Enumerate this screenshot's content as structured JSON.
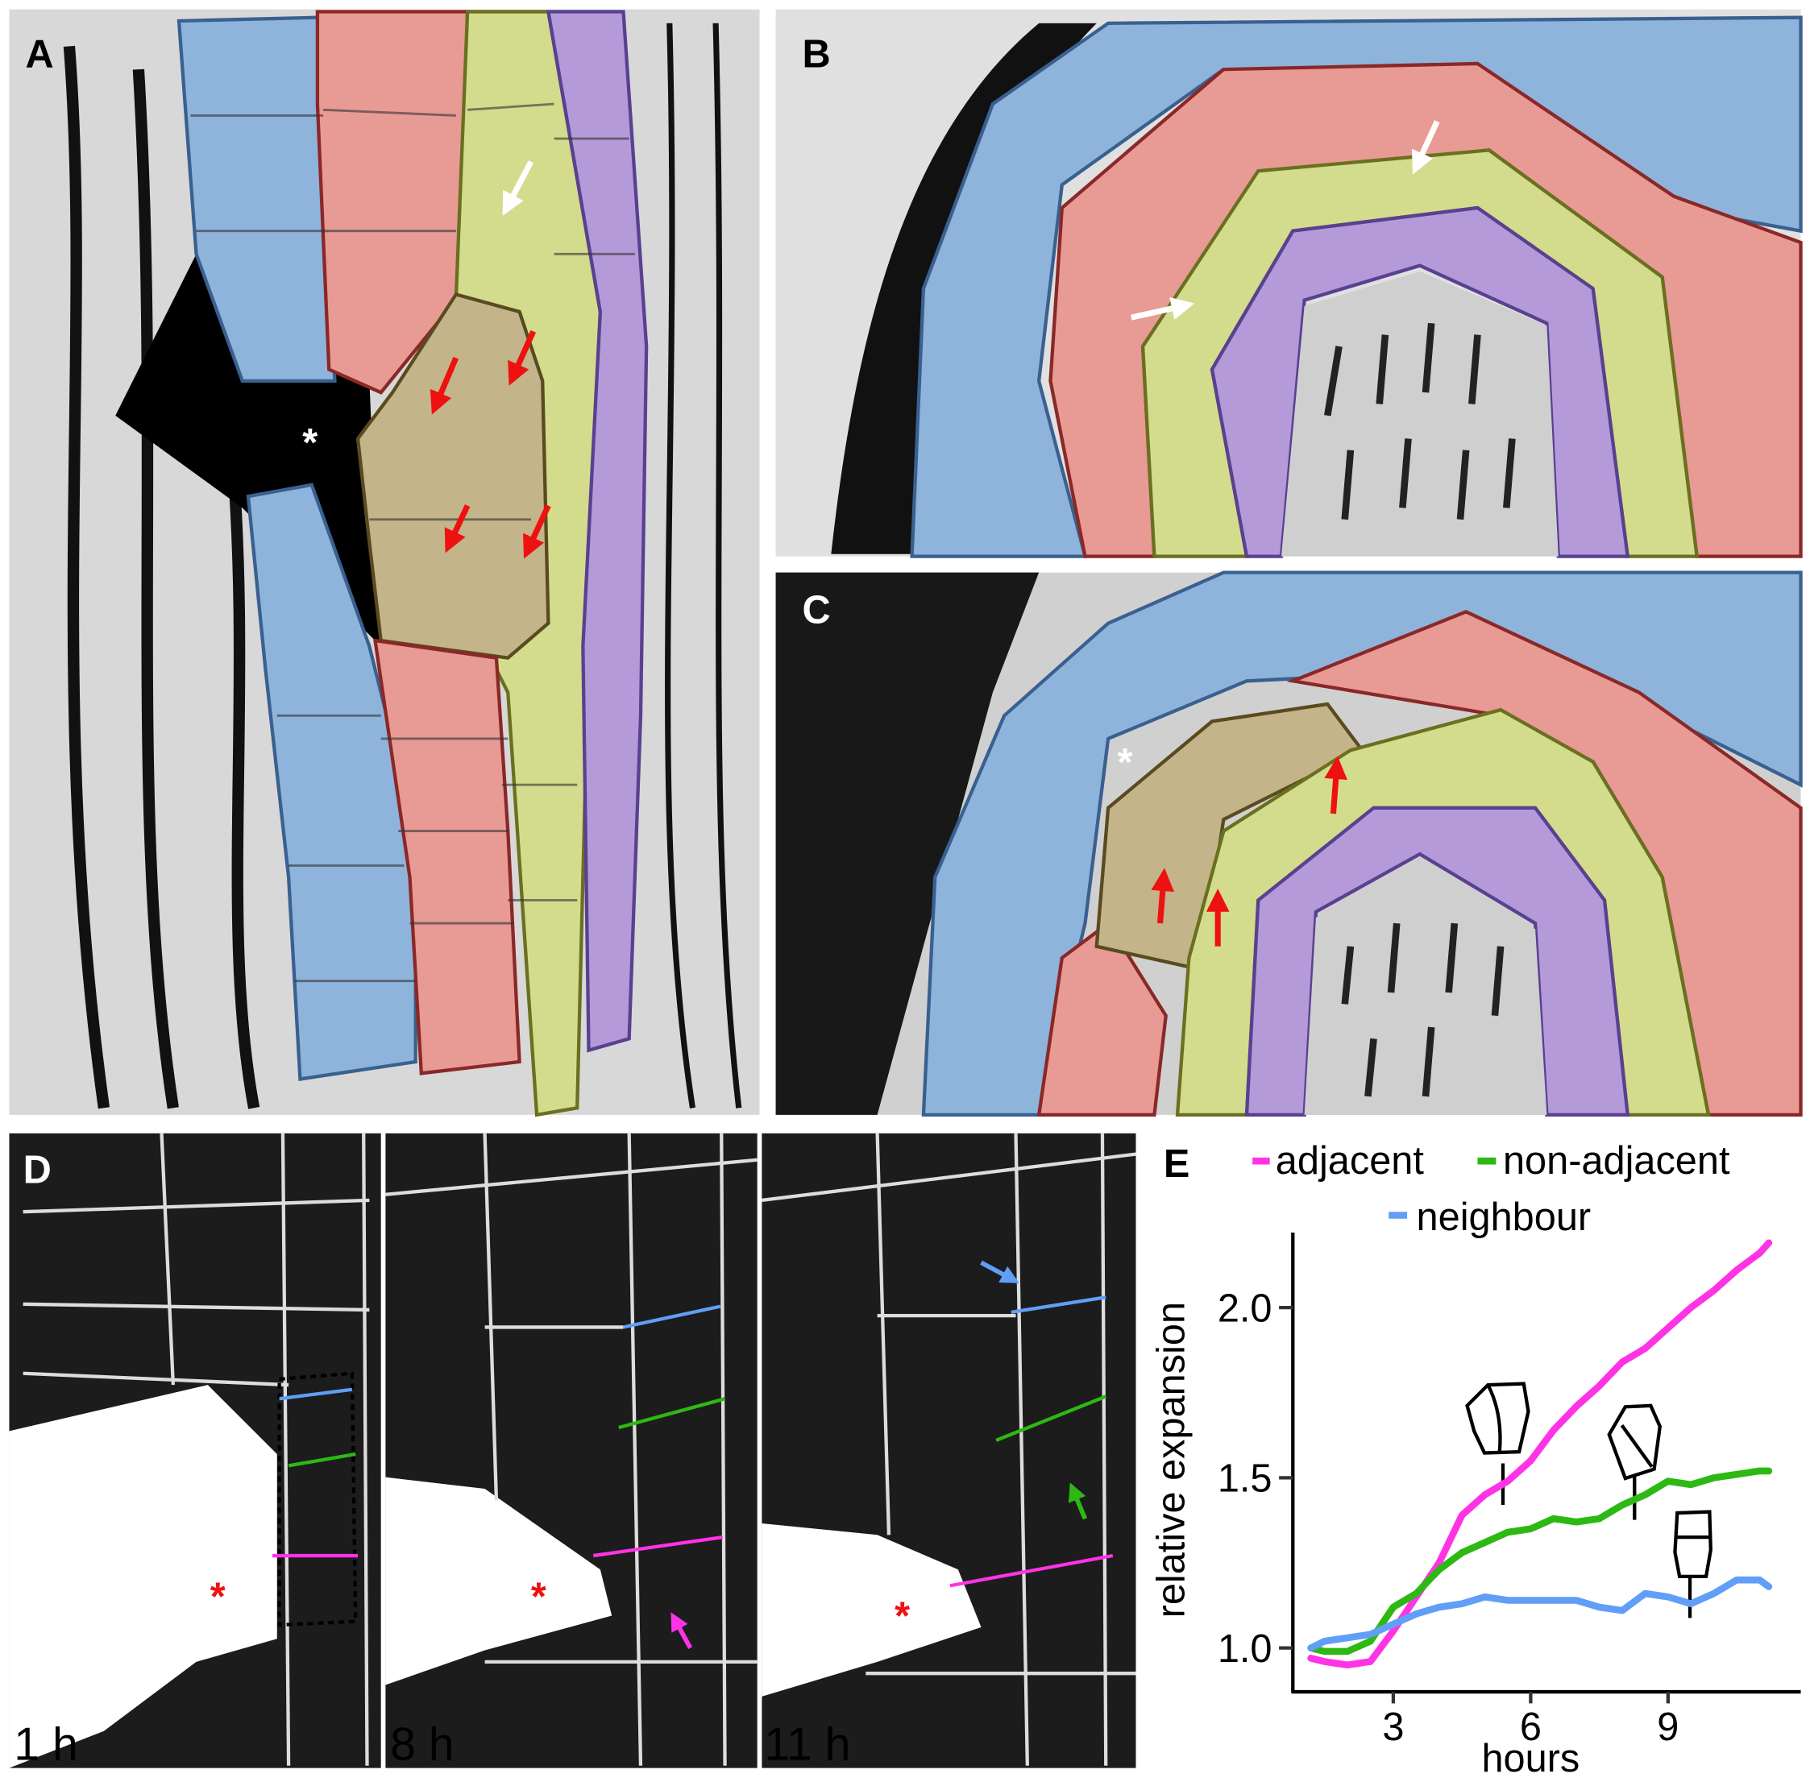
{
  "panels": {
    "A": {
      "label": "A",
      "annotation": "*"
    },
    "B": {
      "label": "B"
    },
    "C": {
      "label": "C",
      "annotation": "*"
    },
    "D": {
      "label": "D",
      "annotation": "*",
      "timepoints": [
        "1 h",
        "8 h",
        "11 h"
      ]
    },
    "E": {
      "label": "E"
    }
  },
  "colors": {
    "outer_layer": "#8fb4dc",
    "second_layer": "#e89a94",
    "third_layer": "#d2dc8c",
    "fourth_layer": "#b49ad8",
    "dividing_cells": "#c4b48a",
    "arrow_red": "#ee1111",
    "arrow_white": "#ffffff",
    "line_adjacent": "#ff33e6",
    "line_non_adjacent": "#2db814",
    "line_neighbour": "#619ef7"
  },
  "chart_data": {
    "type": "line",
    "title": "",
    "xlabel": "hours",
    "ylabel": "relative expansion",
    "xticks": [
      "3",
      "6",
      "9"
    ],
    "yticks": [
      "1.0",
      "1.5",
      "2.0"
    ],
    "xlim": [
      1,
      11.5
    ],
    "ylim": [
      0.9,
      2.2
    ],
    "grid": false,
    "legend_placement": "top",
    "x": [
      1.2,
      1.5,
      2,
      2.5,
      3,
      3.5,
      4,
      4.5,
      5,
      5.5,
      6,
      6.5,
      7,
      7.5,
      8,
      8.5,
      9,
      9.5,
      10,
      10.5,
      11,
      11.2
    ],
    "series": [
      {
        "name": "adjacent",
        "color": "#ff33e6",
        "values": [
          0.97,
          0.96,
          0.95,
          0.96,
          1.05,
          1.15,
          1.25,
          1.39,
          1.45,
          1.49,
          1.55,
          1.64,
          1.71,
          1.77,
          1.84,
          1.88,
          1.94,
          2.0,
          2.05,
          2.11,
          2.16,
          2.19
        ]
      },
      {
        "name": "non-adjacent",
        "color": "#2db814",
        "values": [
          1.0,
          0.99,
          0.99,
          1.02,
          1.12,
          1.16,
          1.23,
          1.28,
          1.31,
          1.34,
          1.35,
          1.38,
          1.37,
          1.38,
          1.42,
          1.45,
          1.49,
          1.48,
          1.5,
          1.51,
          1.52,
          1.52
        ]
      },
      {
        "name": "neighbour",
        "color": "#619ef7",
        "values": [
          1.0,
          1.02,
          1.03,
          1.04,
          1.07,
          1.1,
          1.12,
          1.13,
          1.15,
          1.14,
          1.14,
          1.14,
          1.14,
          1.12,
          1.11,
          1.16,
          1.15,
          1.13,
          1.16,
          1.2,
          1.2,
          1.18
        ]
      }
    ]
  }
}
